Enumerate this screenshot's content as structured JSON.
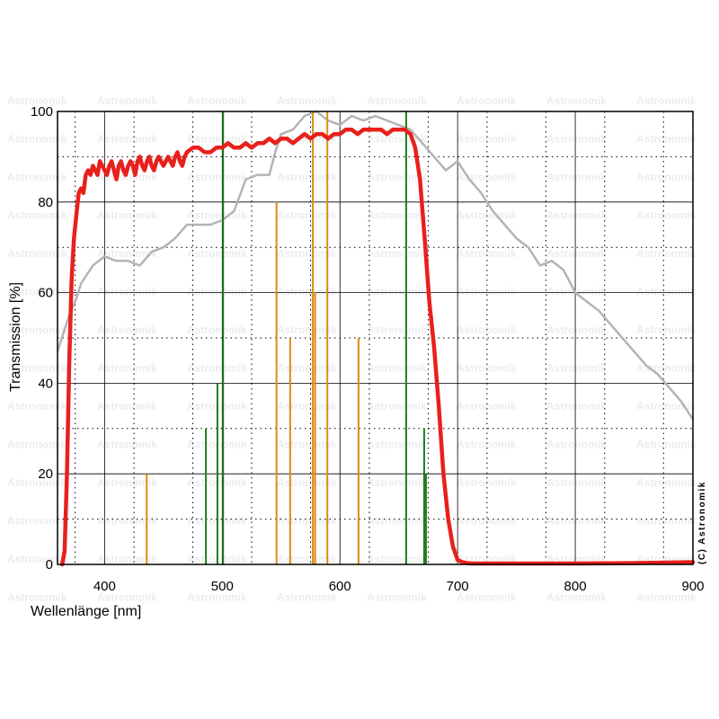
{
  "chart_data": {
    "type": "line",
    "xlabel": "Wellenlänge [nm]",
    "ylabel": "Transmission [%]",
    "xlim": [
      360,
      900
    ],
    "ylim": [
      0,
      100
    ],
    "x_ticks": [
      400,
      500,
      600,
      700,
      800,
      900
    ],
    "y_ticks": [
      0,
      20,
      40,
      60,
      80,
      100
    ],
    "grid": true,
    "watermark": "Astronomik",
    "copyright": "(C) Astronomik",
    "colors": {
      "filter": "#e8201c",
      "reference": "#b4b4b4",
      "emission_green": "#1e7d1e",
      "emission_orange": "#e08a10",
      "grid": "#000000"
    },
    "series": [
      {
        "role": "filter",
        "x": [
          364,
          366,
          368,
          370,
          372,
          374,
          376,
          378,
          380,
          382,
          384,
          386,
          388,
          390,
          392,
          394,
          396,
          398,
          400,
          402,
          404,
          406,
          408,
          410,
          412,
          414,
          416,
          418,
          420,
          422,
          424,
          426,
          428,
          430,
          432,
          434,
          436,
          438,
          440,
          442,
          444,
          446,
          448,
          450,
          452,
          454,
          456,
          458,
          460,
          462,
          464,
          466,
          468,
          470,
          475,
          480,
          485,
          490,
          495,
          500,
          505,
          510,
          515,
          520,
          525,
          530,
          535,
          540,
          545,
          550,
          555,
          560,
          565,
          570,
          575,
          580,
          585,
          590,
          595,
          600,
          605,
          610,
          615,
          620,
          625,
          630,
          635,
          640,
          645,
          650,
          655,
          660,
          664,
          668,
          672,
          676,
          680,
          684,
          688,
          692,
          696,
          700,
          704,
          708,
          712,
          716,
          720,
          730,
          750,
          800,
          850,
          900
        ],
        "y": [
          0,
          3,
          20,
          45,
          63,
          72,
          77,
          82,
          83,
          82,
          86,
          87,
          86,
          88,
          87,
          86,
          89,
          88,
          87,
          86,
          88,
          89,
          87,
          85,
          88,
          89,
          87,
          86,
          88,
          89,
          88,
          86,
          89,
          90,
          88,
          87,
          89,
          90,
          88,
          87,
          89,
          90,
          89,
          88,
          89,
          90,
          89,
          88,
          90,
          91,
          89,
          88,
          90,
          91,
          92,
          92,
          91,
          91,
          92,
          92,
          93,
          92,
          92,
          93,
          92,
          93,
          93,
          94,
          93,
          94,
          94,
          93,
          94,
          95,
          94,
          95,
          95,
          94,
          95,
          95,
          96,
          96,
          95,
          96,
          96,
          96,
          96,
          95,
          96,
          96,
          96,
          95,
          92,
          85,
          72,
          58,
          48,
          35,
          20,
          10,
          4,
          1,
          0.5,
          0.3,
          0.2,
          0.2,
          0.2,
          0.2,
          0.2,
          0.2,
          0.3,
          0.5
        ]
      },
      {
        "role": "reference",
        "x": [
          360,
          365,
          370,
          375,
          380,
          390,
          400,
          410,
          420,
          430,
          440,
          450,
          460,
          470,
          480,
          490,
          500,
          510,
          520,
          530,
          540,
          545,
          550,
          560,
          570,
          580,
          590,
          600,
          610,
          620,
          630,
          640,
          650,
          660,
          670,
          680,
          690,
          700,
          710,
          720,
          730,
          740,
          750,
          760,
          770,
          780,
          790,
          800,
          810,
          820,
          830,
          840,
          850,
          860,
          870,
          880,
          890,
          900
        ],
        "y": [
          47,
          51,
          55,
          58,
          62,
          66,
          68,
          67,
          67,
          66,
          69,
          70,
          72,
          75,
          75,
          75,
          76,
          78,
          85,
          86,
          86,
          91,
          95,
          96,
          99,
          100,
          98,
          97,
          99,
          98,
          99,
          98,
          97,
          96,
          93,
          90,
          87,
          89,
          85,
          82,
          78,
          75,
          72,
          70,
          66,
          67,
          65,
          60,
          58,
          56,
          53,
          50,
          47,
          44,
          42,
          39,
          36,
          32
        ]
      }
    ],
    "emission_lines": [
      {
        "x": 435.8,
        "y": 20,
        "color": "orange"
      },
      {
        "x": 486.1,
        "y": 30,
        "color": "green"
      },
      {
        "x": 495.9,
        "y": 40,
        "color": "green"
      },
      {
        "x": 500.7,
        "y": 100,
        "color": "green"
      },
      {
        "x": 546.1,
        "y": 80,
        "color": "orange"
      },
      {
        "x": 557.7,
        "y": 50,
        "color": "orange"
      },
      {
        "x": 577.0,
        "y": 100,
        "color": "orange"
      },
      {
        "x": 578.9,
        "y": 60,
        "color": "orange"
      },
      {
        "x": 589.3,
        "y": 100,
        "color": "orange"
      },
      {
        "x": 615.8,
        "y": 50,
        "color": "orange"
      },
      {
        "x": 656.3,
        "y": 100,
        "color": "green"
      },
      {
        "x": 671.6,
        "y": 30,
        "color": "green"
      },
      {
        "x": 673.1,
        "y": 20,
        "color": "green"
      }
    ]
  }
}
